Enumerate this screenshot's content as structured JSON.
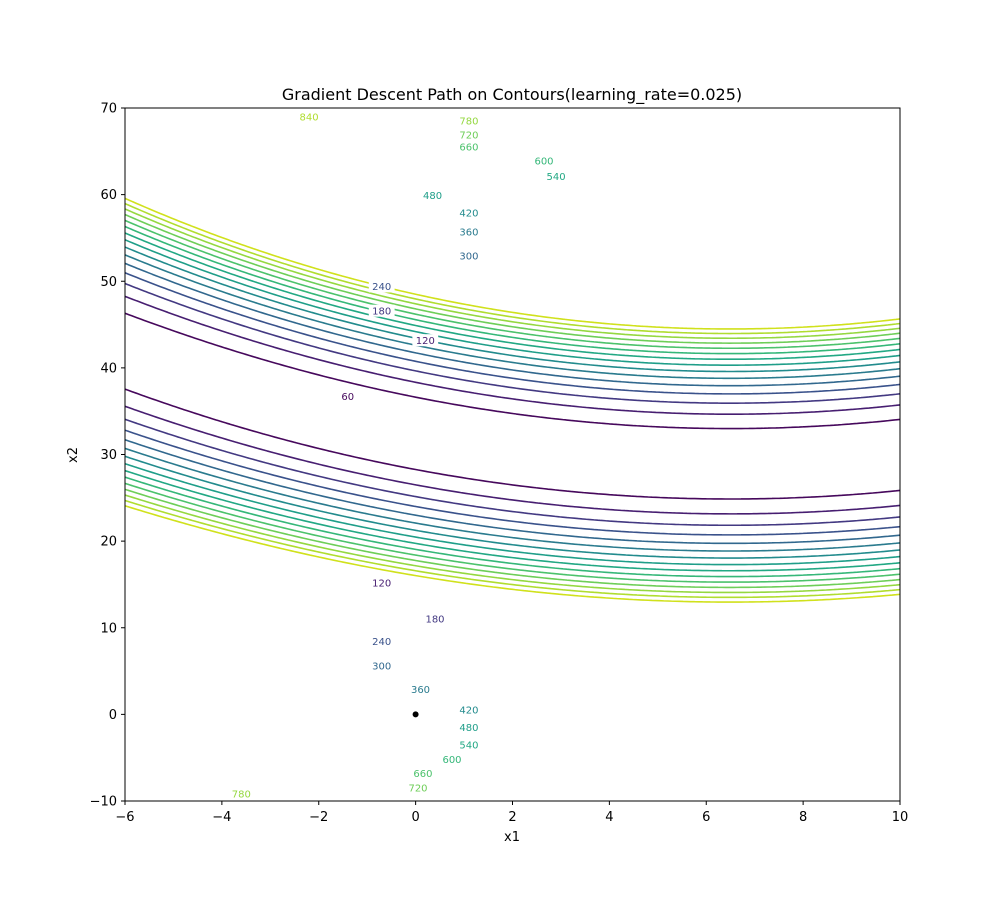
{
  "chart_data": {
    "type": "contour",
    "title": "Gradient Descent Path on Contours(learning_rate=0.025)",
    "xlabel": "x1",
    "ylabel": "x2",
    "xlim": [
      -6,
      10
    ],
    "ylim": [
      -10,
      70
    ],
    "xticks": [
      "-6",
      "-4",
      "-2",
      "0",
      "2",
      "4",
      "6",
      "8",
      "10"
    ],
    "yticks": [
      "-10",
      "0",
      "10",
      "20",
      "30",
      "40",
      "50",
      "60",
      "70"
    ],
    "grid": false,
    "colormap": "viridis",
    "levels": [
      60,
      120,
      180,
      240,
      300,
      360,
      420,
      480,
      540,
      600,
      660,
      720,
      780,
      840,
      900
    ],
    "level_colors": [
      "#46085c",
      "#471e71",
      "#433982",
      "#3a528b",
      "#31688e",
      "#2a7b8e",
      "#228b8d",
      "#1f9e89",
      "#22a884",
      "#35b779",
      "#4cc26c",
      "#6ece58",
      "#95d840",
      "#b0dd2f",
      "#d0e11c"
    ],
    "contour_labels": [
      {
        "text": "60",
        "x": -1.4,
        "y": 36.7
      },
      {
        "text": "120",
        "x": 0.2,
        "y": 43.2
      },
      {
        "text": "120",
        "x": -0.7,
        "y": 15.2
      },
      {
        "text": "180",
        "x": -0.7,
        "y": 46.6
      },
      {
        "text": "180",
        "x": 0.4,
        "y": 11.0
      },
      {
        "text": "240",
        "x": -0.7,
        "y": 49.4
      },
      {
        "text": "240",
        "x": -0.7,
        "y": 8.4
      },
      {
        "text": "300",
        "x": 1.1,
        "y": 52.9
      },
      {
        "text": "300",
        "x": -0.7,
        "y": 5.6
      },
      {
        "text": "360",
        "x": 1.1,
        "y": 55.7
      },
      {
        "text": "360",
        "x": 0.1,
        "y": 2.9
      },
      {
        "text": "420",
        "x": 1.1,
        "y": 57.9
      },
      {
        "text": "420",
        "x": 1.1,
        "y": 0.5
      },
      {
        "text": "480",
        "x": 0.35,
        "y": 59.9
      },
      {
        "text": "480",
        "x": 1.1,
        "y": -1.5
      },
      {
        "text": "540",
        "x": 2.9,
        "y": 62.1
      },
      {
        "text": "540",
        "x": 1.1,
        "y": -3.5
      },
      {
        "text": "600",
        "x": 2.65,
        "y": 63.9
      },
      {
        "text": "600",
        "x": 0.75,
        "y": -5.2
      },
      {
        "text": "660",
        "x": 1.1,
        "y": 65.5
      },
      {
        "text": "660",
        "x": 0.15,
        "y": -6.8
      },
      {
        "text": "720",
        "x": 1.1,
        "y": 66.9
      },
      {
        "text": "720",
        "x": 0.05,
        "y": -8.5
      },
      {
        "text": "780",
        "x": 1.1,
        "y": 68.5
      },
      {
        "text": "780",
        "x": -3.6,
        "y": -9.2
      },
      {
        "text": "840",
        "x": -2.2,
        "y": 69.0
      }
    ],
    "points": [
      {
        "x": 0,
        "y": 0
      }
    ]
  }
}
